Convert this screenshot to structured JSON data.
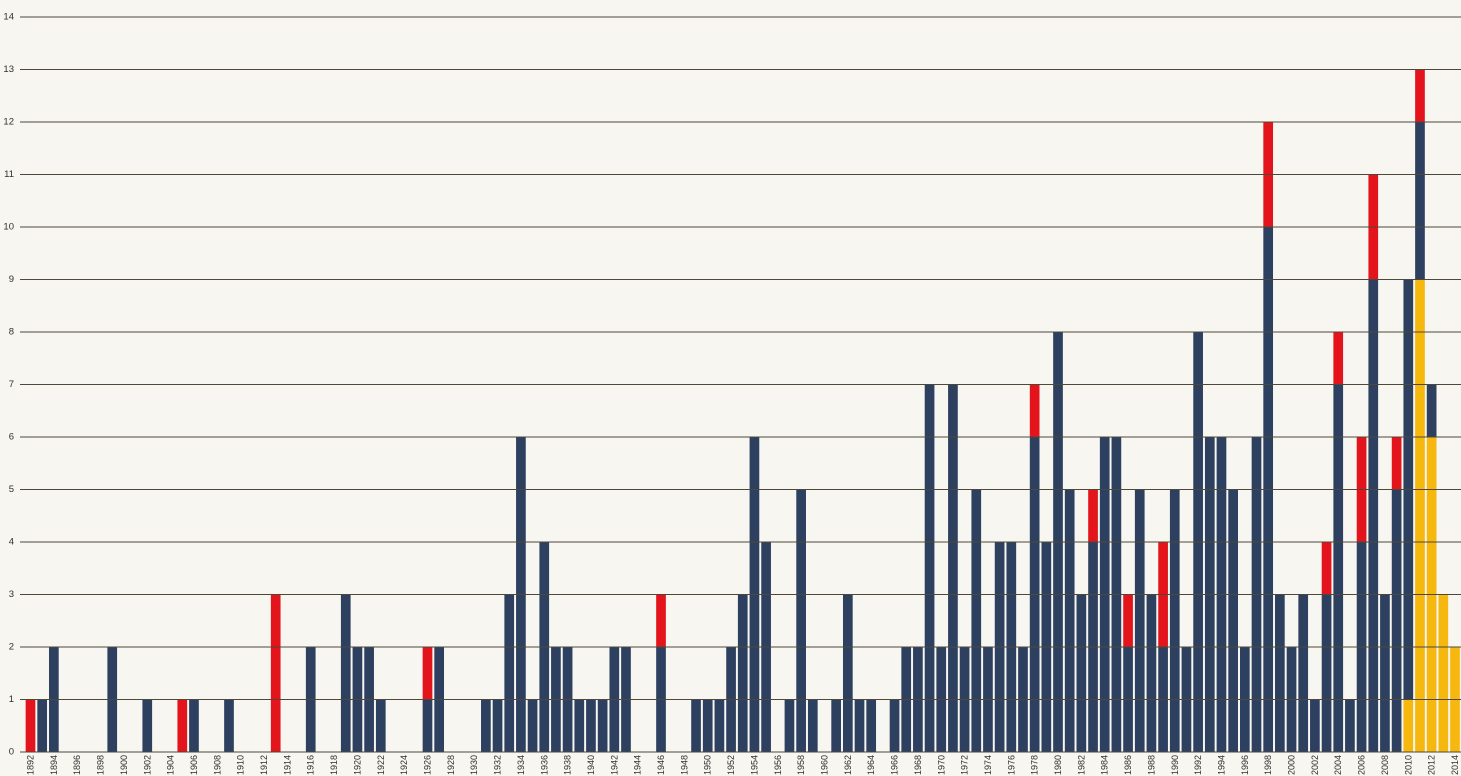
{
  "chart_data": {
    "type": "bar",
    "stacked": true,
    "categories": [
      1892,
      1893,
      1894,
      1895,
      1896,
      1897,
      1898,
      1899,
      1900,
      1901,
      1902,
      1903,
      1904,
      1905,
      1906,
      1907,
      1908,
      1909,
      1910,
      1911,
      1912,
      1913,
      1914,
      1915,
      1916,
      1917,
      1918,
      1919,
      1920,
      1921,
      1922,
      1923,
      1924,
      1925,
      1926,
      1927,
      1928,
      1929,
      1930,
      1931,
      1932,
      1933,
      1934,
      1935,
      1936,
      1937,
      1938,
      1939,
      1940,
      1941,
      1942,
      1943,
      1944,
      1945,
      1946,
      1947,
      1948,
      1949,
      1950,
      1951,
      1952,
      1953,
      1954,
      1955,
      1956,
      1957,
      1958,
      1959,
      1960,
      1961,
      1962,
      1963,
      1964,
      1965,
      1966,
      1967,
      1968,
      1969,
      1970,
      1971,
      1972,
      1973,
      1974,
      1975,
      1976,
      1977,
      1978,
      1979,
      1980,
      1981,
      1982,
      1983,
      1984,
      1985,
      1986,
      1987,
      1988,
      1989,
      1990,
      1991,
      1992,
      1993,
      1994,
      1995,
      1996,
      1997,
      1998,
      1999,
      2000,
      2001,
      2002,
      2003,
      2004,
      2005,
      2006,
      2007,
      2008,
      2009,
      2010,
      2011,
      2012,
      2013,
      2014
    ],
    "series": [
      {
        "color": "#f6b70e",
        "values": [
          0,
          0,
          0,
          0,
          0,
          0,
          0,
          0,
          0,
          0,
          0,
          0,
          0,
          0,
          0,
          0,
          0,
          0,
          0,
          0,
          0,
          0,
          0,
          0,
          0,
          0,
          0,
          0,
          0,
          0,
          0,
          0,
          0,
          0,
          0,
          0,
          0,
          0,
          0,
          0,
          0,
          0,
          0,
          0,
          0,
          0,
          0,
          0,
          0,
          0,
          0,
          0,
          0,
          0,
          0,
          0,
          0,
          0,
          0,
          0,
          0,
          0,
          0,
          0,
          0,
          0,
          0,
          0,
          0,
          0,
          0,
          0,
          0,
          0,
          0,
          0,
          0,
          0,
          0,
          0,
          0,
          0,
          0,
          0,
          0,
          0,
          0,
          0,
          0,
          0,
          0,
          0,
          0,
          0,
          0,
          0,
          0,
          0,
          0,
          0,
          0,
          0,
          0,
          0,
          0,
          0,
          0,
          0,
          0,
          0,
          0,
          0,
          0,
          0,
          0,
          0,
          0,
          0,
          1,
          9,
          6,
          3,
          2
        ]
      },
      {
        "color": "#2e405f",
        "values": [
          0,
          1,
          2,
          0,
          0,
          0,
          0,
          2,
          0,
          0,
          1,
          0,
          0,
          0,
          1,
          0,
          0,
          1,
          0,
          0,
          0,
          0,
          0,
          0,
          2,
          0,
          0,
          3,
          2,
          2,
          1,
          0,
          0,
          0,
          1,
          2,
          0,
          0,
          0,
          1,
          1,
          3,
          6,
          1,
          4,
          2,
          2,
          1,
          1,
          1,
          2,
          2,
          0,
          0,
          2,
          0,
          0,
          1,
          1,
          1,
          2,
          3,
          6,
          4,
          0,
          1,
          5,
          1,
          0,
          1,
          3,
          1,
          1,
          0,
          1,
          2,
          2,
          7,
          2,
          7,
          2,
          5,
          2,
          4,
          4,
          2,
          6,
          4,
          8,
          5,
          3,
          4,
          6,
          6,
          2,
          5,
          3,
          2,
          5,
          2,
          8,
          6,
          6,
          5,
          2,
          6,
          10,
          3,
          2,
          3,
          1,
          3,
          7,
          1,
          4,
          9,
          3,
          5,
          8,
          3,
          1,
          0,
          0
        ]
      },
      {
        "color": "#e3141b",
        "values": [
          1,
          0,
          0,
          0,
          0,
          0,
          0,
          0,
          0,
          0,
          0,
          0,
          0,
          1,
          0,
          0,
          0,
          0,
          0,
          0,
          0,
          3,
          0,
          0,
          0,
          0,
          0,
          0,
          0,
          0,
          0,
          0,
          0,
          0,
          1,
          0,
          0,
          0,
          0,
          0,
          0,
          0,
          0,
          0,
          0,
          0,
          0,
          0,
          0,
          0,
          0,
          0,
          0,
          0,
          1,
          0,
          0,
          0,
          0,
          0,
          0,
          0,
          0,
          0,
          0,
          0,
          0,
          0,
          0,
          0,
          0,
          0,
          0,
          0,
          0,
          0,
          0,
          0,
          0,
          0,
          0,
          0,
          0,
          0,
          0,
          0,
          1,
          0,
          0,
          0,
          0,
          1,
          0,
          0,
          1,
          0,
          0,
          2,
          0,
          0,
          0,
          0,
          0,
          0,
          0,
          0,
          2,
          0,
          0,
          0,
          0,
          1,
          1,
          0,
          2,
          2,
          0,
          1,
          0,
          1,
          0,
          0,
          0
        ]
      }
    ],
    "ylim": [
      0,
      14
    ],
    "grid": true,
    "y_tick_labels": [
      "0",
      "1",
      "2",
      "3",
      "4",
      "5",
      "6",
      "7",
      "8",
      "9",
      "10",
      "11",
      "12",
      "13",
      "14"
    ],
    "x_tick_labels": [
      "1892",
      "1894",
      "1896",
      "1898",
      "1900",
      "1902",
      "1904",
      "1906",
      "1908",
      "1910",
      "1912",
      "1914",
      "1916",
      "1918",
      "1920",
      "1922",
      "1924",
      "1926",
      "1928",
      "1930",
      "1932",
      "1934",
      "1936",
      "1938",
      "1940",
      "1942",
      "1944",
      "1946",
      "1948",
      "1950",
      "1952",
      "1954",
      "1956",
      "1958",
      "1960",
      "1962",
      "1964",
      "1966",
      "1968",
      "1970",
      "1972",
      "1974",
      "1976",
      "1978",
      "1980",
      "1982",
      "1984",
      "1986",
      "1988",
      "1990",
      "1992",
      "1994",
      "1996",
      "1998",
      "2000",
      "2002",
      "2004",
      "2006",
      "2008",
      "2010",
      "2012",
      "2014"
    ],
    "colors": {
      "background": "#f7f6f1",
      "gridline": "#4e483a",
      "tick_text": "#2f2f2f"
    }
  }
}
